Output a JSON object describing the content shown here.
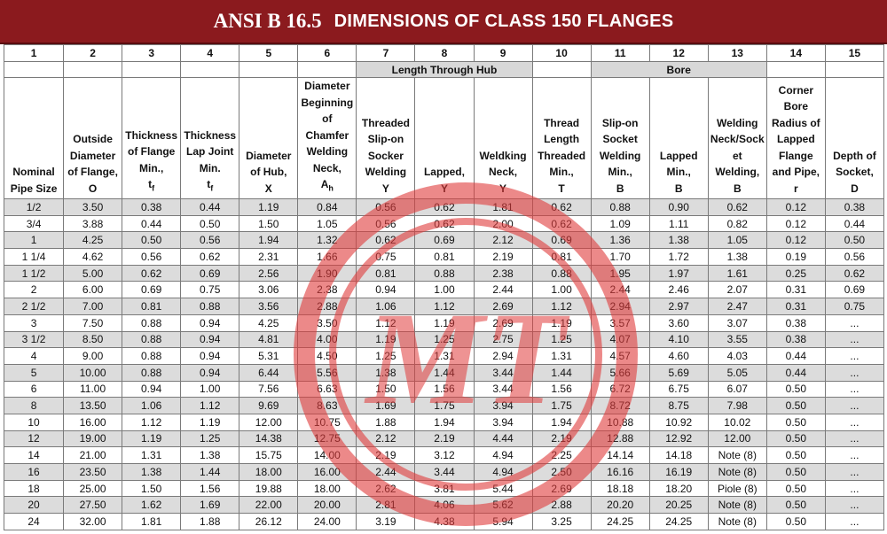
{
  "title": {
    "part1": "ANSI B 16.5",
    "part2": "DIMENSIONS OF CLASS 150 FLANGES"
  },
  "column_numbers": [
    "1",
    "2",
    "3",
    "4",
    "5",
    "6",
    "7",
    "8",
    "9",
    "10",
    "11",
    "12",
    "13",
    "14",
    "15"
  ],
  "groups": {
    "length_through_hub": "Length Through Hub",
    "bore": "Bore"
  },
  "headers": [
    {
      "lines": [
        "Nominal",
        "Pipe Size"
      ]
    },
    {
      "lines": [
        "Outside",
        "Diameter",
        "of Flange,",
        "O"
      ]
    },
    {
      "lines": [
        "Thickness",
        "of Flange",
        "Min.,"
      ],
      "sym": "t",
      "sub": "f"
    },
    {
      "lines": [
        "Thickness",
        "Lap Joint",
        "Min."
      ],
      "sym": "t",
      "sub": "f"
    },
    {
      "lines": [
        "Diameter",
        "of Hub,",
        "X"
      ]
    },
    {
      "lines": [
        "Diameter",
        "Beginning",
        "of",
        "Chamfer",
        "Welding",
        "Neck,"
      ],
      "sym": "A",
      "sub": "h"
    },
    {
      "lines": [
        "Threaded",
        "Slip-on",
        "Socker",
        "Welding",
        "Y"
      ]
    },
    {
      "lines": [
        "Lapped,",
        "Y"
      ]
    },
    {
      "lines": [
        "Weldking",
        "Neck,",
        "Y"
      ]
    },
    {
      "lines": [
        "Thread",
        "Length",
        "Threaded",
        "Min.,",
        "T"
      ]
    },
    {
      "lines": [
        "Slip-on",
        "Socket",
        "Welding",
        "Min.,",
        "B"
      ]
    },
    {
      "lines": [
        "Lapped",
        "Min.,",
        "B"
      ]
    },
    {
      "lines": [
        "Welding",
        "Neck/Sock",
        "et",
        "Welding,",
        "B"
      ]
    },
    {
      "lines": [
        "Corner",
        "Bore",
        "Radius of",
        "Lapped",
        "Flange",
        "and Pipe,",
        "r"
      ]
    },
    {
      "lines": [
        "Depth of",
        "Socket,",
        "D"
      ]
    }
  ],
  "rows": [
    [
      "1/2",
      "3.50",
      "0.38",
      "0.44",
      "1.19",
      "0.84",
      "0.56",
      "0.62",
      "1.81",
      "0.62",
      "0.88",
      "0.90",
      "0.62",
      "0.12",
      "0.38"
    ],
    [
      "3/4",
      "3.88",
      "0.44",
      "0.50",
      "1.50",
      "1.05",
      "0.56",
      "0.62",
      "2.00",
      "0.62",
      "1.09",
      "1.11",
      "0.82",
      "0.12",
      "0.44"
    ],
    [
      "1",
      "4.25",
      "0.50",
      "0.56",
      "1.94",
      "1.32",
      "0.62",
      "0.69",
      "2.12",
      "0.69",
      "1.36",
      "1.38",
      "1.05",
      "0.12",
      "0.50"
    ],
    [
      "1 1/4",
      "4.62",
      "0.56",
      "0.62",
      "2.31",
      "1.66",
      "0.75",
      "0.81",
      "2.19",
      "0.81",
      "1.70",
      "1.72",
      "1.38",
      "0.19",
      "0.56"
    ],
    [
      "1 1/2",
      "5.00",
      "0.62",
      "0.69",
      "2.56",
      "1.90",
      "0.81",
      "0.88",
      "2.38",
      "0.88",
      "1.95",
      "1.97",
      "1.61",
      "0.25",
      "0.62"
    ],
    [
      "2",
      "6.00",
      "0.69",
      "0.75",
      "3.06",
      "2.38",
      "0.94",
      "1.00",
      "2.44",
      "1.00",
      "2.44",
      "2.46",
      "2.07",
      "0.31",
      "0.69"
    ],
    [
      "2 1/2",
      "7.00",
      "0.81",
      "0.88",
      "3.56",
      "2.88",
      "1.06",
      "1.12",
      "2.69",
      "1.12",
      "2.94",
      "2.97",
      "2.47",
      "0.31",
      "0.75"
    ],
    [
      "3",
      "7.50",
      "0.88",
      "0.94",
      "4.25",
      "3.50",
      "1.12",
      "1.19",
      "2.69",
      "1.19",
      "3.57",
      "3.60",
      "3.07",
      "0.38",
      "..."
    ],
    [
      "3 1/2",
      "8.50",
      "0.88",
      "0.94",
      "4.81",
      "4.00",
      "1.19",
      "1.25",
      "2.75",
      "1.25",
      "4.07",
      "4.10",
      "3.55",
      "0.38",
      "..."
    ],
    [
      "4",
      "9.00",
      "0.88",
      "0.94",
      "5.31",
      "4.50",
      "1.25",
      "1.31",
      "2.94",
      "1.31",
      "4.57",
      "4.60",
      "4.03",
      "0.44",
      "..."
    ],
    [
      "5",
      "10.00",
      "0.88",
      "0.94",
      "6.44",
      "5.56",
      "1.38",
      "1.44",
      "3.44",
      "1.44",
      "5.66",
      "5.69",
      "5.05",
      "0.44",
      "..."
    ],
    [
      "6",
      "11.00",
      "0.94",
      "1.00",
      "7.56",
      "6.63",
      "1.50",
      "1.56",
      "3.44",
      "1.56",
      "6.72",
      "6.75",
      "6.07",
      "0.50",
      "..."
    ],
    [
      "8",
      "13.50",
      "1.06",
      "1.12",
      "9.69",
      "8.63",
      "1.69",
      "1.75",
      "3.94",
      "1.75",
      "8.72",
      "8.75",
      "7.98",
      "0.50",
      "..."
    ],
    [
      "10",
      "16.00",
      "1.12",
      "1.19",
      "12.00",
      "10.75",
      "1.88",
      "1.94",
      "3.94",
      "1.94",
      "10.88",
      "10.92",
      "10.02",
      "0.50",
      "..."
    ],
    [
      "12",
      "19.00",
      "1.19",
      "1.25",
      "14.38",
      "12.75",
      "2.12",
      "2.19",
      "4.44",
      "2.19",
      "12.88",
      "12.92",
      "12.00",
      "0.50",
      "..."
    ],
    [
      "14",
      "21.00",
      "1.31",
      "1.38",
      "15.75",
      "14.00",
      "2.19",
      "3.12",
      "4.94",
      "2.25",
      "14.14",
      "14.18",
      "Note (8)",
      "0.50",
      "..."
    ],
    [
      "16",
      "23.50",
      "1.38",
      "1.44",
      "18.00",
      "16.00",
      "2.44",
      "3.44",
      "4.94",
      "2.50",
      "16.16",
      "16.19",
      "Note (8)",
      "0.50",
      "..."
    ],
    [
      "18",
      "25.00",
      "1.50",
      "1.56",
      "19.88",
      "18.00",
      "2.62",
      "3.81",
      "5.44",
      "2.69",
      "18.18",
      "18.20",
      "Piole (8)",
      "0.50",
      "..."
    ],
    [
      "20",
      "27.50",
      "1.62",
      "1.69",
      "22.00",
      "20.00",
      "2.81",
      "4.06",
      "5.62",
      "2.88",
      "20.20",
      "20.25",
      "Note (8)",
      "0.50",
      "..."
    ],
    [
      "24",
      "32.00",
      "1.81",
      "1.88",
      "26.12",
      "24.00",
      "3.19",
      "4.38",
      "5.94",
      "3.25",
      "24.25",
      "24.25",
      "Note (8)",
      "0.50",
      "..."
    ]
  ],
  "watermark": {
    "text": "MT",
    "color": "#e03a3a"
  },
  "colors": {
    "title_bg": "#8b1a1e",
    "title_text": "#ffffff",
    "row_shade": "#dcdcdc",
    "group_shade": "#d8d8d8"
  }
}
